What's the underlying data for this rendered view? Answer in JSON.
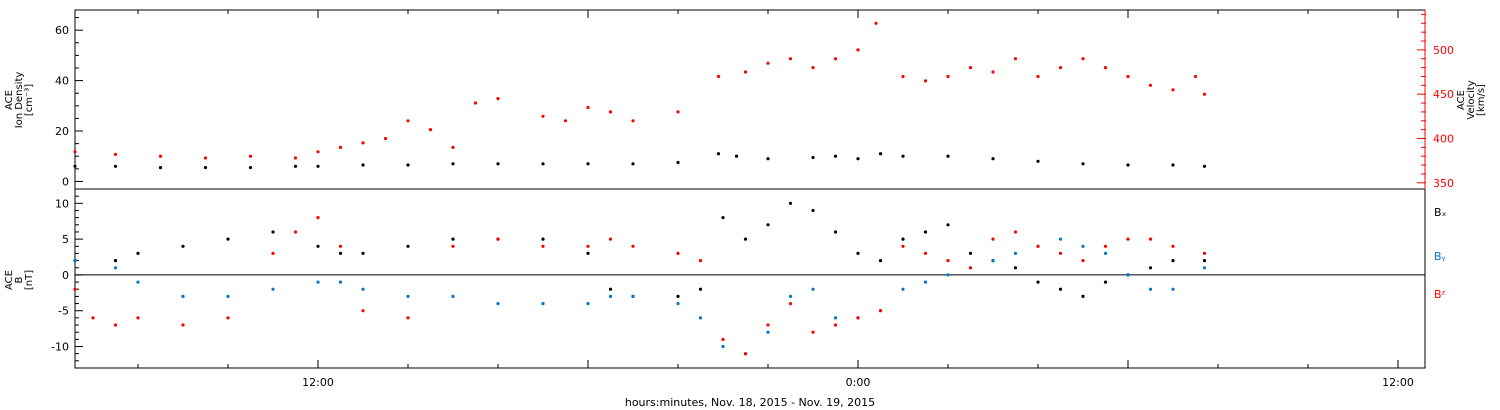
{
  "colors": {
    "axis": "#000000",
    "density": "#000000",
    "velocity": "#ff0000",
    "bx": "#000000",
    "by": "#0077cc",
    "bz": "#ff0000"
  },
  "chart_data": [
    {
      "type": "scatter",
      "panel": "top",
      "xlabel": "hours:minutes, Nov. 18, 2015 - Nov. 19, 2015",
      "x_unit": "hours since 2015-11-18 00:00",
      "xlim": [
        6.6,
        36.6
      ],
      "x_ticks": [
        {
          "value": 12,
          "label": "12:00"
        },
        {
          "value": 24,
          "label": "0:00"
        },
        {
          "value": 36,
          "label": "12:00"
        }
      ],
      "left_axis": {
        "label_lines": [
          "ACE",
          "Ion Density",
          "[cm⁻³]"
        ],
        "ylim": [
          -3,
          68
        ],
        "ticks": [
          0,
          20,
          40,
          60
        ]
      },
      "right_axis": {
        "label_lines": [
          "ACE",
          "Velocity",
          "[km/s]"
        ],
        "ylim": [
          343,
          545
        ],
        "ticks": [
          350,
          400,
          450,
          500
        ]
      },
      "series": [
        {
          "key": "density",
          "axis": "left",
          "x": [
            6.6,
            7.5,
            8.5,
            9.5,
            10.5,
            11.5,
            12.0,
            13.0,
            14.0,
            15.0,
            16.0,
            17.0,
            18.0,
            19.0,
            20.0,
            20.9,
            21.3,
            22.0,
            23.0,
            23.5,
            24.0,
            24.5,
            25.0,
            26.0,
            27.0,
            28.0,
            29.0,
            30.0,
            31.0,
            31.7
          ],
          "y": [
            6,
            6,
            5.5,
            5.5,
            5.5,
            6,
            6,
            6.5,
            6.5,
            7,
            7,
            7,
            7,
            7,
            7.5,
            11,
            10,
            9,
            9.5,
            10,
            9,
            11,
            10,
            10,
            9,
            8,
            7,
            6.5,
            6.5,
            6
          ]
        },
        {
          "key": "velocity",
          "axis": "right",
          "x": [
            6.6,
            7.5,
            8.5,
            9.5,
            10.5,
            11.5,
            12.0,
            12.5,
            13.0,
            13.5,
            14.0,
            14.5,
            15.0,
            15.5,
            16.0,
            17.0,
            17.5,
            18.0,
            18.5,
            19.0,
            20.0,
            20.9,
            21.5,
            22.0,
            22.5,
            23.0,
            23.5,
            24.0,
            24.4,
            25.0,
            25.5,
            26.0,
            26.5,
            27.0,
            27.5,
            28.0,
            28.5,
            29.0,
            29.5,
            30.0,
            30.5,
            31.0,
            31.5,
            31.7
          ],
          "y": [
            385,
            382,
            380,
            378,
            380,
            378,
            385,
            390,
            395,
            400,
            420,
            410,
            390,
            440,
            445,
            425,
            420,
            435,
            430,
            420,
            430,
            470,
            475,
            485,
            490,
            480,
            490,
            500,
            530,
            470,
            465,
            470,
            480,
            475,
            490,
            470,
            480,
            490,
            480,
            470,
            460,
            455,
            470,
            450
          ]
        }
      ]
    },
    {
      "type": "scatter",
      "panel": "bottom",
      "xlim": [
        6.6,
        36.6
      ],
      "left_axis": {
        "label_lines": [
          "ACE",
          "B",
          "[nT]"
        ],
        "ylim": [
          -13,
          12
        ],
        "ticks": [
          -10,
          -5,
          0,
          5,
          10
        ]
      },
      "zero_line": true,
      "series": [
        {
          "key": "bx",
          "label": "Bₓ",
          "x": [
            6.6,
            7.5,
            8.0,
            9.0,
            10.0,
            11.0,
            12.0,
            12.5,
            13.0,
            14.0,
            15.0,
            16.0,
            17.0,
            18.0,
            18.5,
            19.0,
            20.0,
            20.5,
            21.0,
            21.5,
            22.0,
            22.5,
            23.0,
            23.5,
            24.0,
            24.5,
            25.0,
            25.5,
            26.0,
            26.5,
            27.0,
            27.5,
            28.0,
            28.5,
            29.0,
            29.5,
            30.0,
            30.5,
            31.0,
            31.7
          ],
          "y": [
            2,
            2,
            3,
            4,
            5,
            6,
            4,
            3,
            3,
            4,
            5,
            5,
            5,
            3,
            -2,
            -3,
            -3,
            -2,
            8,
            5,
            7,
            10,
            9,
            6,
            3,
            2,
            5,
            6,
            7,
            3,
            2,
            1,
            -1,
            -2,
            -3,
            -1,
            0,
            1,
            2,
            2
          ]
        },
        {
          "key": "by",
          "label": "Bᵧ",
          "x": [
            6.6,
            7.5,
            8.0,
            9.0,
            10.0,
            11.0,
            12.0,
            12.5,
            13.0,
            14.0,
            15.0,
            16.0,
            17.0,
            18.0,
            18.5,
            19.0,
            20.0,
            20.5,
            21.0,
            21.5,
            22.0,
            22.5,
            23.0,
            23.5,
            24.0,
            24.5,
            25.0,
            25.5,
            26.0,
            26.5,
            27.0,
            27.5,
            28.0,
            28.5,
            29.0,
            29.5,
            30.0,
            30.5,
            31.0,
            31.7
          ],
          "y": [
            2,
            1,
            -1,
            -3,
            -3,
            -2,
            -1,
            -1,
            -2,
            -3,
            -3,
            -4,
            -4,
            -4,
            -3,
            -3,
            -4,
            -6,
            -10,
            -11,
            -8,
            -3,
            -2,
            -6,
            -6,
            -5,
            -2,
            -1,
            0,
            1,
            2,
            3,
            4,
            5,
            4,
            3,
            0,
            -2,
            -2,
            1
          ]
        },
        {
          "key": "bz",
          "label": "Bᶻ",
          "x": [
            6.6,
            7.0,
            7.5,
            8.0,
            9.0,
            10.0,
            11.0,
            11.5,
            12.0,
            12.5,
            13.0,
            14.0,
            15.0,
            16.0,
            17.0,
            18.0,
            18.5,
            19.0,
            20.0,
            20.5,
            21.0,
            21.5,
            22.0,
            22.5,
            23.0,
            23.5,
            24.0,
            24.5,
            25.0,
            25.5,
            26.0,
            26.5,
            27.0,
            27.5,
            28.0,
            28.5,
            29.0,
            29.5,
            30.0,
            30.5,
            31.0,
            31.7
          ],
          "y": [
            -2,
            -6,
            -7,
            -6,
            -7,
            -6,
            3,
            6,
            8,
            4,
            -5,
            -6,
            4,
            5,
            4,
            4,
            5,
            4,
            3,
            2,
            -9,
            -11,
            -7,
            -4,
            -8,
            -7,
            -6,
            -5,
            4,
            3,
            2,
            1,
            5,
            6,
            4,
            3,
            2,
            4,
            5,
            5,
            4,
            3
          ]
        }
      ]
    }
  ]
}
